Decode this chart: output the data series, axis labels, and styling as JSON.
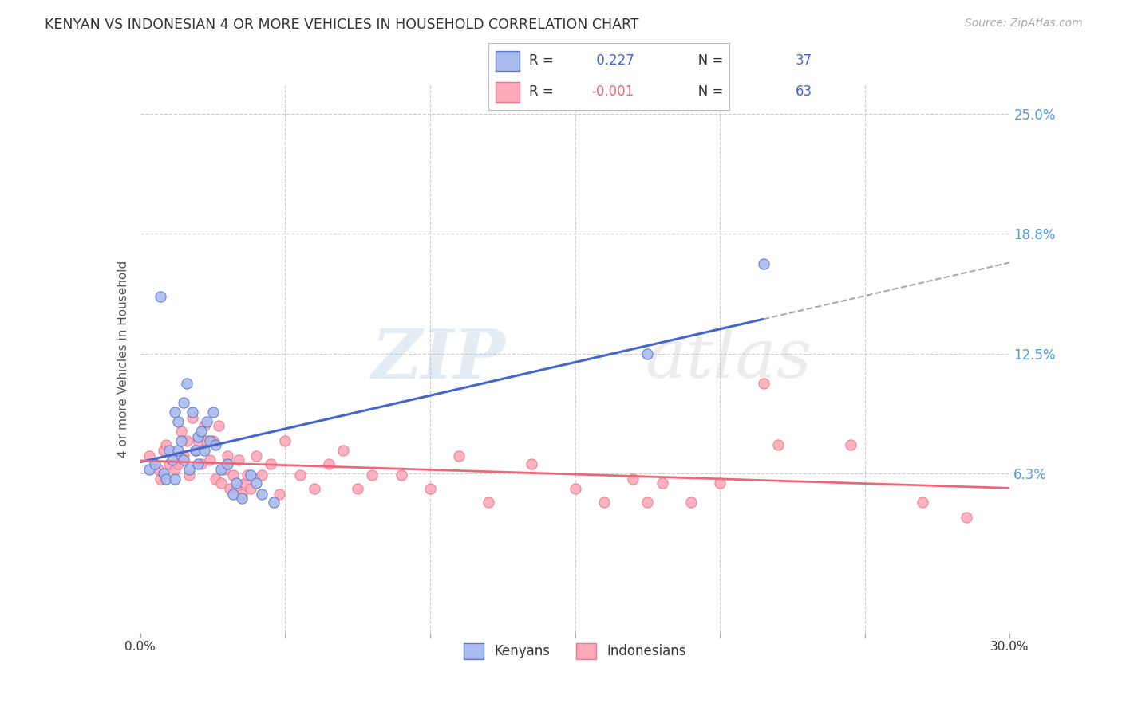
{
  "title": "KENYAN VS INDONESIAN 4 OR MORE VEHICLES IN HOUSEHOLD CORRELATION CHART",
  "source": "Source: ZipAtlas.com",
  "ylabel": "4 or more Vehicles in Household",
  "xlim": [
    0.0,
    0.3
  ],
  "ylim": [
    -0.02,
    0.265
  ],
  "yticks_right": [
    0.063,
    0.125,
    0.188,
    0.25
  ],
  "ytick_labels_right": [
    "6.3%",
    "12.5%",
    "18.8%",
    "25.0%"
  ],
  "kenyan_R": 0.227,
  "kenyan_N": 37,
  "indonesian_R": -0.001,
  "indonesian_N": 63,
  "blue_dot_color": "#AABBEE",
  "blue_edge_color": "#5577CC",
  "pink_dot_color": "#FFAABB",
  "pink_edge_color": "#EE7788",
  "line_blue": "#4466CC",
  "line_pink": "#EE6677",
  "grid_color": "#CCCCCC",
  "title_color": "#333333",
  "right_tick_color": "#5599DD",
  "kenyan_x": [
    0.003,
    0.005,
    0.007,
    0.008,
    0.009,
    0.01,
    0.011,
    0.012,
    0.012,
    0.013,
    0.013,
    0.014,
    0.015,
    0.015,
    0.016,
    0.017,
    0.018,
    0.019,
    0.02,
    0.02,
    0.021,
    0.022,
    0.023,
    0.024,
    0.025,
    0.026,
    0.028,
    0.03,
    0.032,
    0.033,
    0.035,
    0.038,
    0.04,
    0.042,
    0.046,
    0.175,
    0.215
  ],
  "kenyan_y": [
    0.065,
    0.068,
    0.155,
    0.063,
    0.06,
    0.075,
    0.07,
    0.095,
    0.06,
    0.09,
    0.075,
    0.08,
    0.07,
    0.1,
    0.11,
    0.065,
    0.095,
    0.075,
    0.082,
    0.068,
    0.085,
    0.075,
    0.09,
    0.08,
    0.095,
    0.078,
    0.065,
    0.068,
    0.052,
    0.058,
    0.05,
    0.062,
    0.058,
    0.052,
    0.048,
    0.125,
    0.172
  ],
  "indonesian_x": [
    0.003,
    0.005,
    0.006,
    0.007,
    0.008,
    0.009,
    0.01,
    0.011,
    0.012,
    0.013,
    0.014,
    0.015,
    0.016,
    0.017,
    0.018,
    0.019,
    0.02,
    0.021,
    0.022,
    0.023,
    0.024,
    0.025,
    0.026,
    0.027,
    0.028,
    0.029,
    0.03,
    0.031,
    0.032,
    0.033,
    0.034,
    0.035,
    0.036,
    0.037,
    0.038,
    0.04,
    0.042,
    0.045,
    0.048,
    0.05,
    0.055,
    0.06,
    0.065,
    0.07,
    0.075,
    0.08,
    0.09,
    0.1,
    0.11,
    0.12,
    0.135,
    0.15,
    0.16,
    0.17,
    0.175,
    0.18,
    0.19,
    0.2,
    0.215,
    0.22,
    0.245,
    0.27,
    0.285
  ],
  "indonesian_y": [
    0.072,
    0.068,
    0.065,
    0.06,
    0.075,
    0.078,
    0.068,
    0.07,
    0.065,
    0.068,
    0.085,
    0.072,
    0.08,
    0.062,
    0.092,
    0.075,
    0.08,
    0.068,
    0.088,
    0.08,
    0.07,
    0.08,
    0.06,
    0.088,
    0.058,
    0.065,
    0.072,
    0.055,
    0.062,
    0.055,
    0.07,
    0.052,
    0.058,
    0.062,
    0.055,
    0.072,
    0.062,
    0.068,
    0.052,
    0.08,
    0.062,
    0.055,
    0.068,
    0.075,
    0.055,
    0.062,
    0.062,
    0.055,
    0.072,
    0.048,
    0.068,
    0.055,
    0.048,
    0.06,
    0.048,
    0.058,
    0.048,
    0.058,
    0.11,
    0.078,
    0.078,
    0.048,
    0.04
  ],
  "watermark_zip": "ZIP",
  "watermark_atlas": "atlas",
  "legend_kenyan_label": "Kenyans",
  "legend_indonesian_label": "Indonesians"
}
